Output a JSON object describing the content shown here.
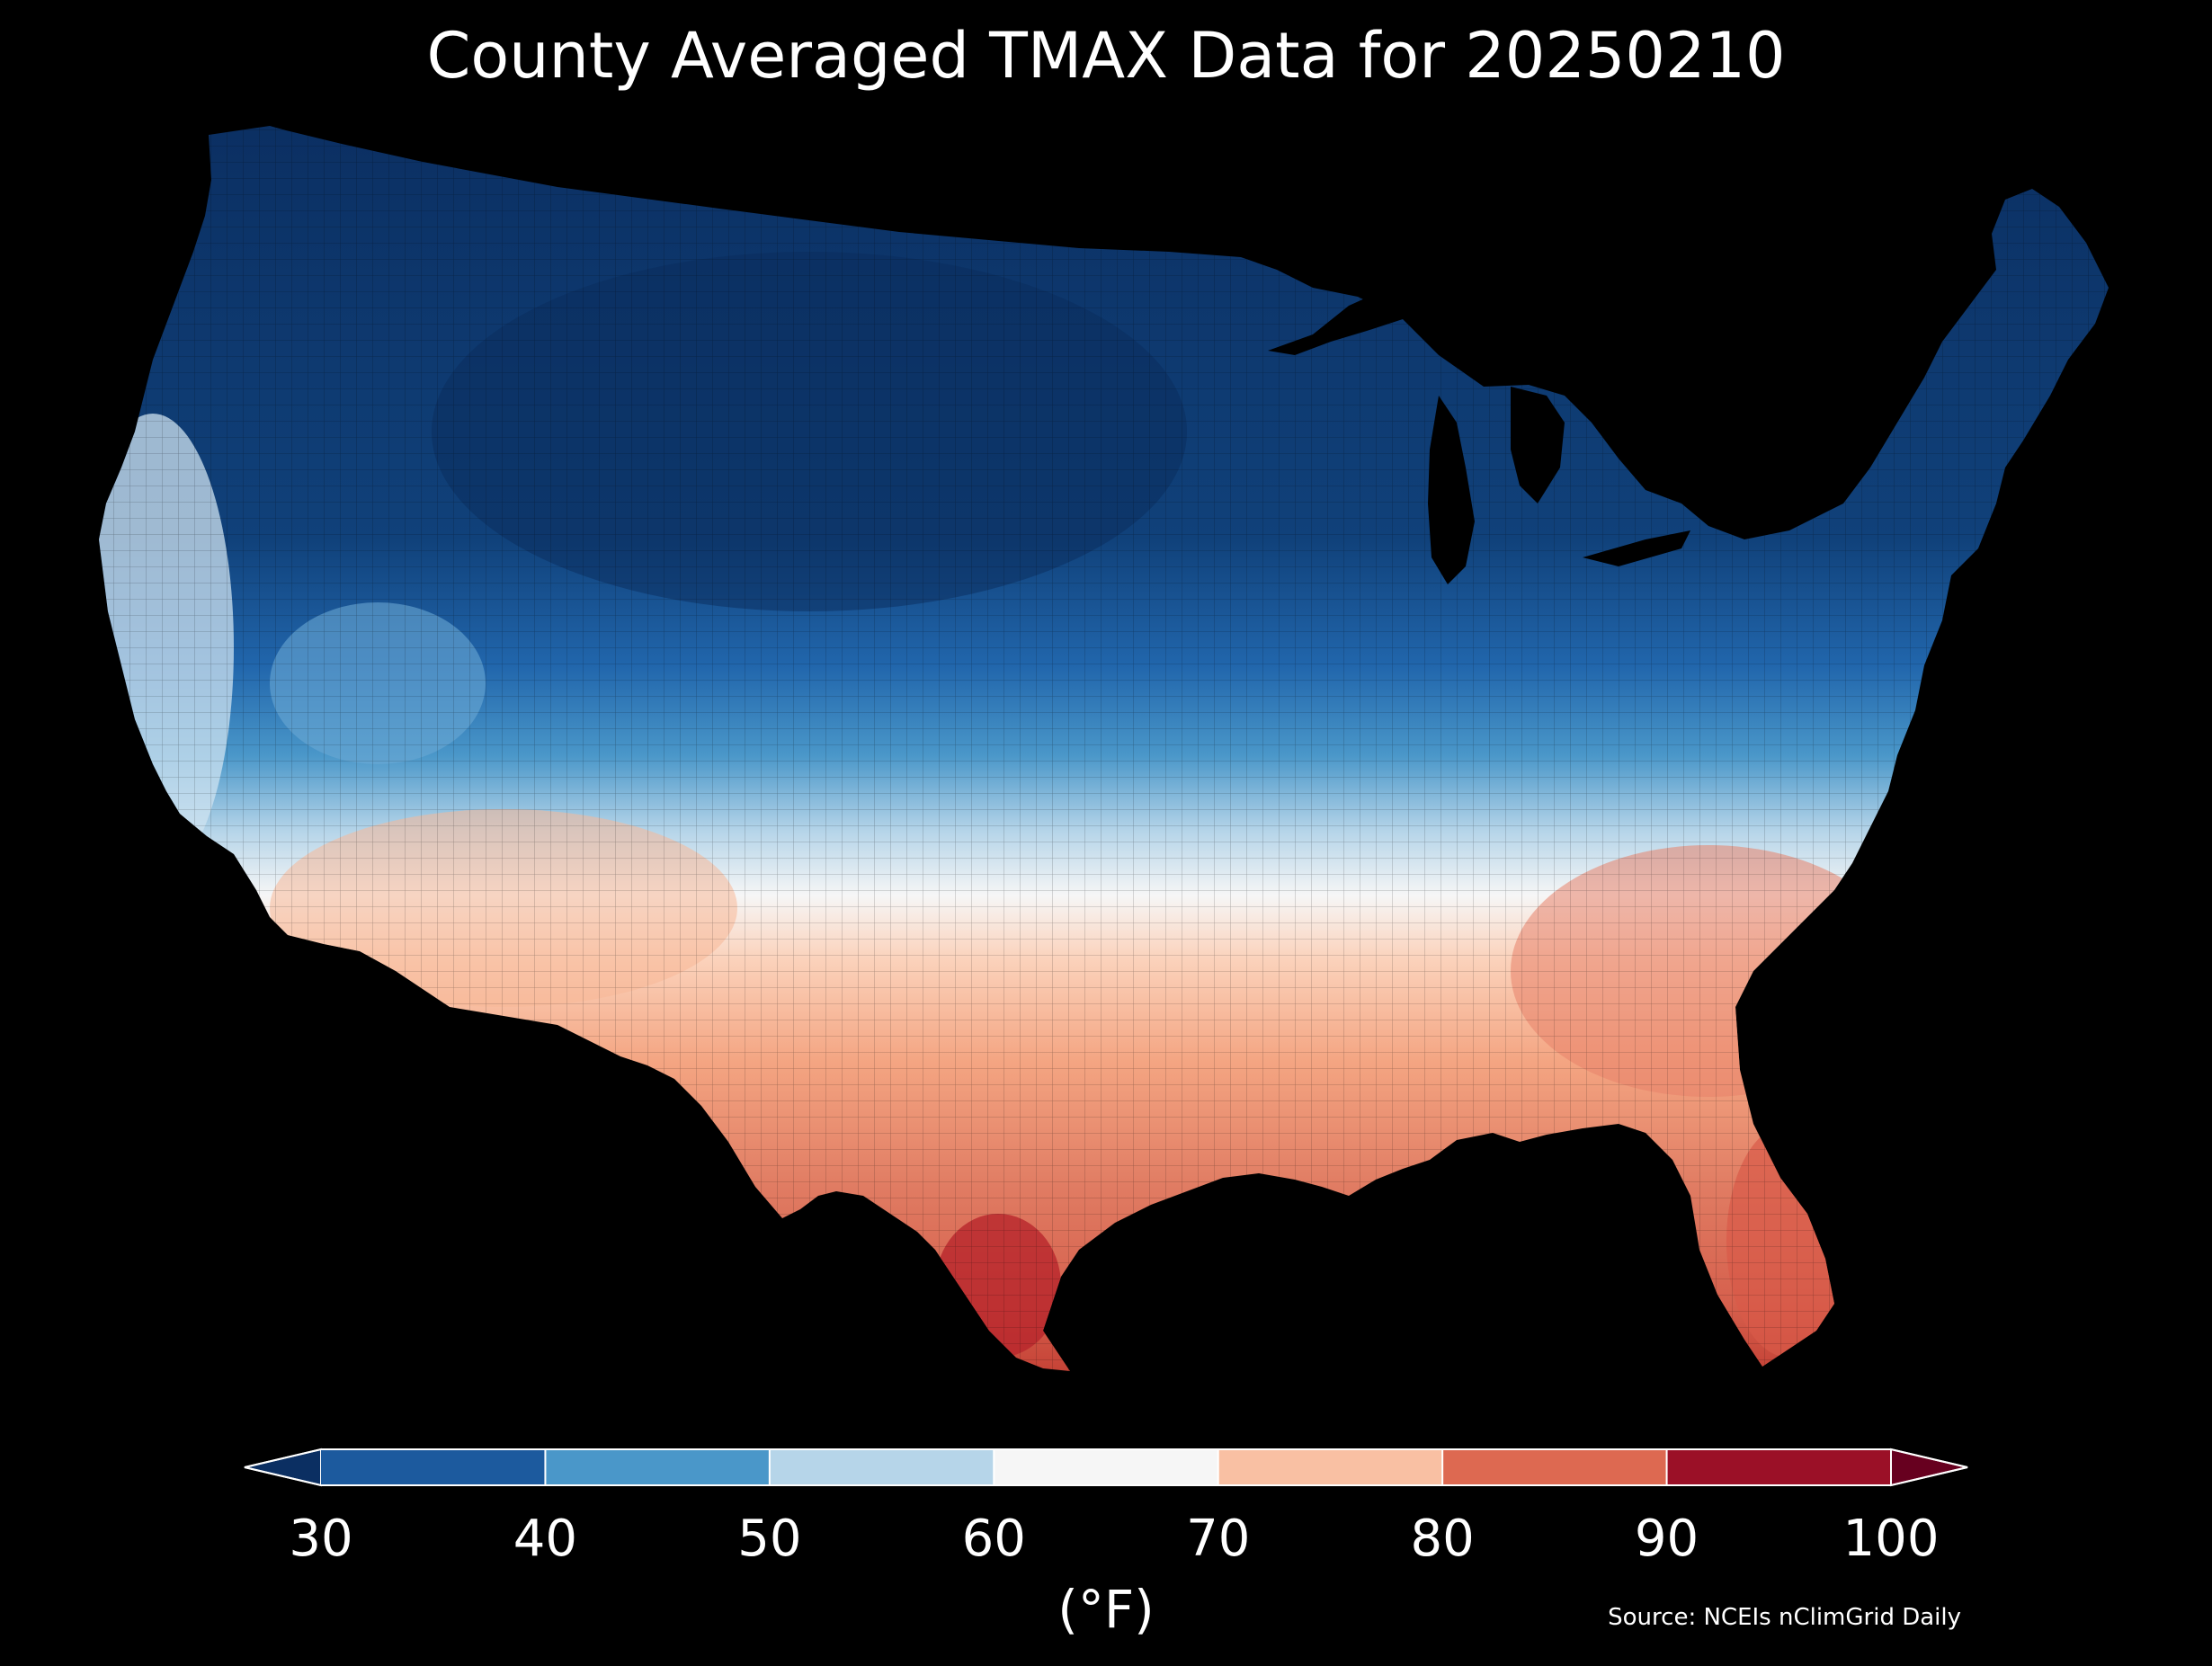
{
  "title": "County Averaged TMAX Data for 20250210",
  "colorbar": {
    "unit_label": "(°F)",
    "ticks": [
      "30",
      "40",
      "50",
      "60",
      "70",
      "80",
      "90",
      "100"
    ],
    "bins": [
      {
        "from": 30,
        "to": 40,
        "color": "#1c5a9e"
      },
      {
        "from": 40,
        "to": 50,
        "color": "#4a97c9"
      },
      {
        "from": 50,
        "to": 60,
        "color": "#b6d5e9"
      },
      {
        "from": 60,
        "to": 70,
        "color": "#f6f6f6"
      },
      {
        "from": 70,
        "to": 80,
        "color": "#f9c0a3"
      },
      {
        "from": 80,
        "to": 90,
        "color": "#dd6951"
      },
      {
        "from": 90,
        "to": 100,
        "color": "#9b1027"
      }
    ],
    "under_color": "#0b2f62",
    "over_color": "#67001f"
  },
  "source": "Source: NCEIs nClimGrid Daily",
  "colors": {
    "background": "#000000",
    "text": "#ffffff",
    "county_border": "#000000"
  }
}
